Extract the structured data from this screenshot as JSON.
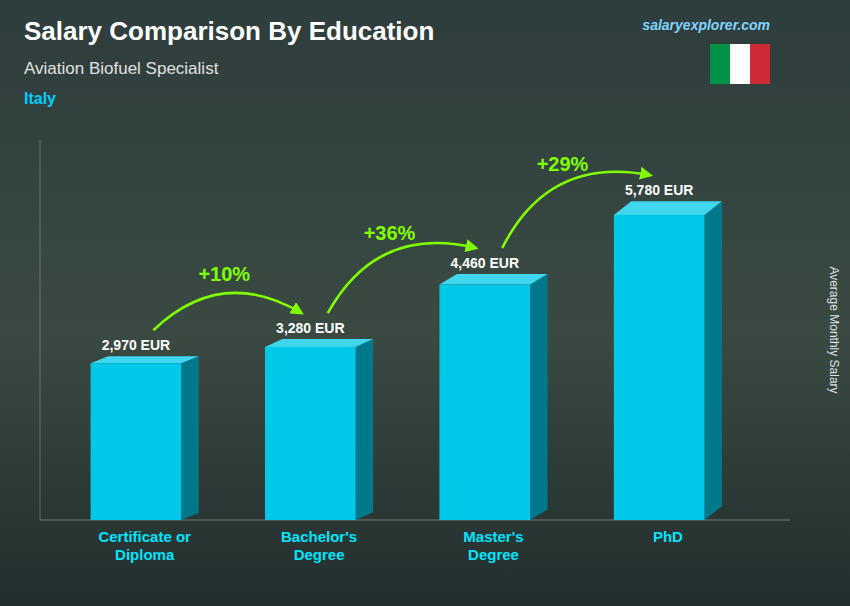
{
  "chart_data": {
    "type": "bar",
    "title": "Salary Comparison By Education",
    "subtitle": "Aviation Biofuel Specialist",
    "ylabel": "Average Monthly Salary",
    "categories": [
      "Certificate or\nDiploma",
      "Bachelor's\nDegree",
      "Master's\nDegree",
      "PhD"
    ],
    "values": [
      2970,
      3280,
      4460,
      5780
    ],
    "value_labels": [
      "2,970 EUR",
      "3,280 EUR",
      "4,460 EUR",
      "5,780 EUR"
    ],
    "data_labels": true,
    "color": "#00c8e8",
    "ylim": [
      0,
      7200
    ],
    "tick_labels": "x",
    "grid": false,
    "annotations": {
      "country": "Italy",
      "source": "salaryexplorer.com",
      "changes": [
        "+10%",
        "+36%",
        "+29%"
      ]
    }
  }
}
